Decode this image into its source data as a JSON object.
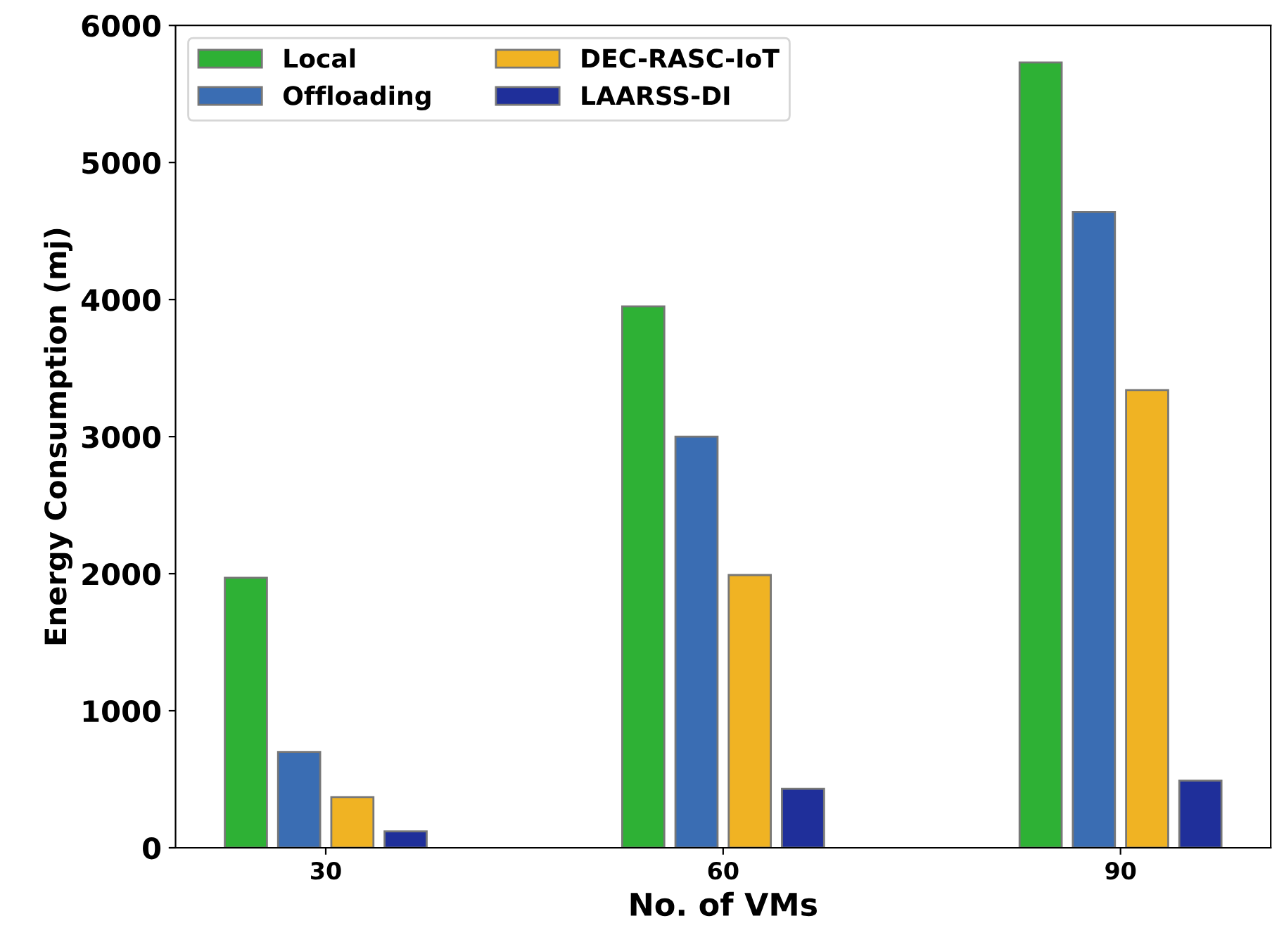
{
  "chart_data": {
    "type": "bar",
    "xlabel": "No. of VMs",
    "ylabel": "Energy Consumption (mj)",
    "categories": [
      "30",
      "60",
      "90"
    ],
    "series": [
      {
        "name": "Local",
        "color": "#2eb135",
        "values": [
          1970,
          3950,
          5730
        ]
      },
      {
        "name": "Offloading",
        "color": "#3a6db3",
        "values": [
          700,
          3000,
          4640
        ]
      },
      {
        "name": "DEC-RASC-IoT",
        "color": "#f0b323",
        "values": [
          370,
          1990,
          3340
        ]
      },
      {
        "name": "LAARSS-DI",
        "color": "#1f2f9a",
        "values": [
          120,
          430,
          490
        ]
      }
    ],
    "ylim": [
      0,
      6000
    ],
    "yticks": [
      0,
      1000,
      2000,
      3000,
      4000,
      5000,
      6000
    ],
    "grid": false,
    "legend": "top left"
  }
}
